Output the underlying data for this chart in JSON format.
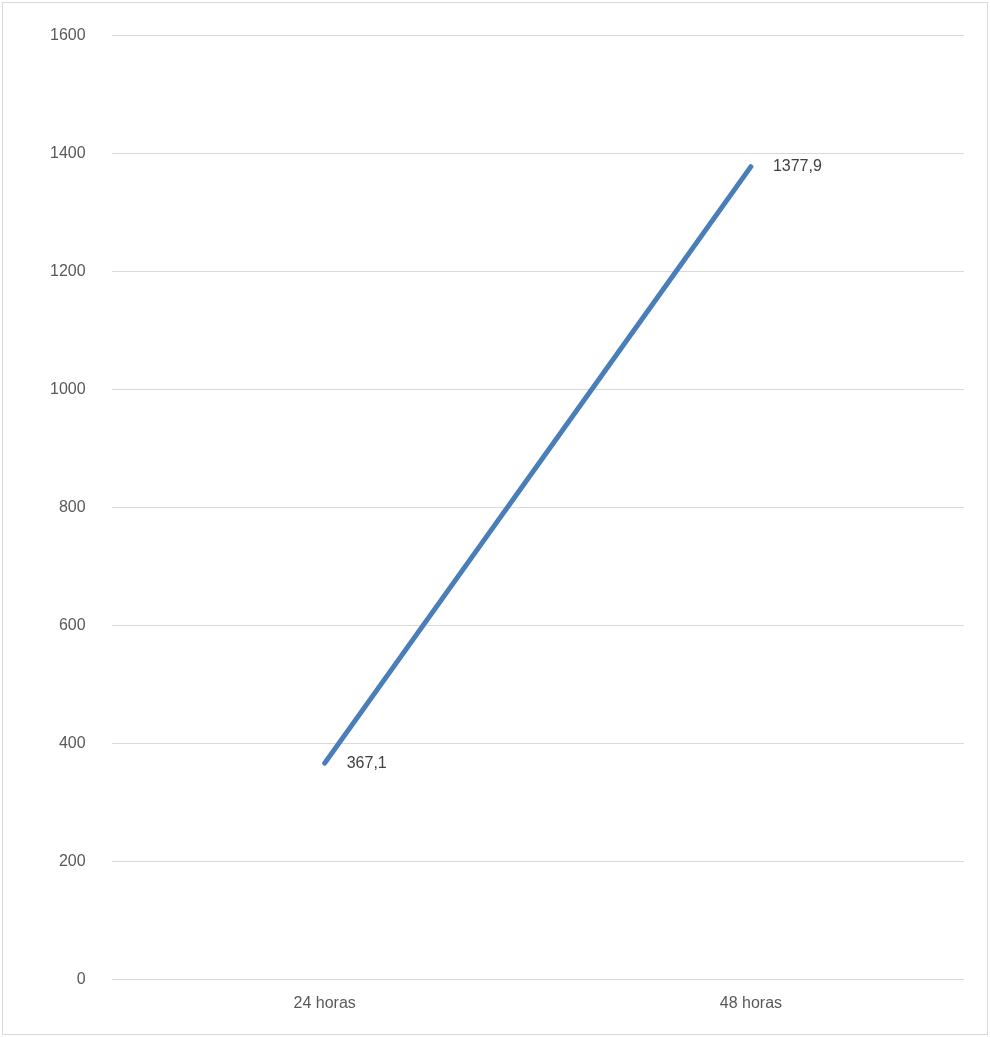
{
  "chart_data": {
    "type": "line",
    "categories": [
      "24 horas",
      "48 horas"
    ],
    "series": [
      {
        "color": "#4a7ebb",
        "values": [
          367.1,
          1377.9
        ],
        "value_labels": [
          "367,1",
          "1377,9"
        ]
      }
    ],
    "ylim": [
      0,
      1600
    ],
    "yticks": [
      0,
      200,
      400,
      600,
      800,
      1000,
      1200,
      1400,
      1600
    ],
    "grid": "y",
    "legend": false,
    "marker": "none",
    "line_style": "solid"
  }
}
